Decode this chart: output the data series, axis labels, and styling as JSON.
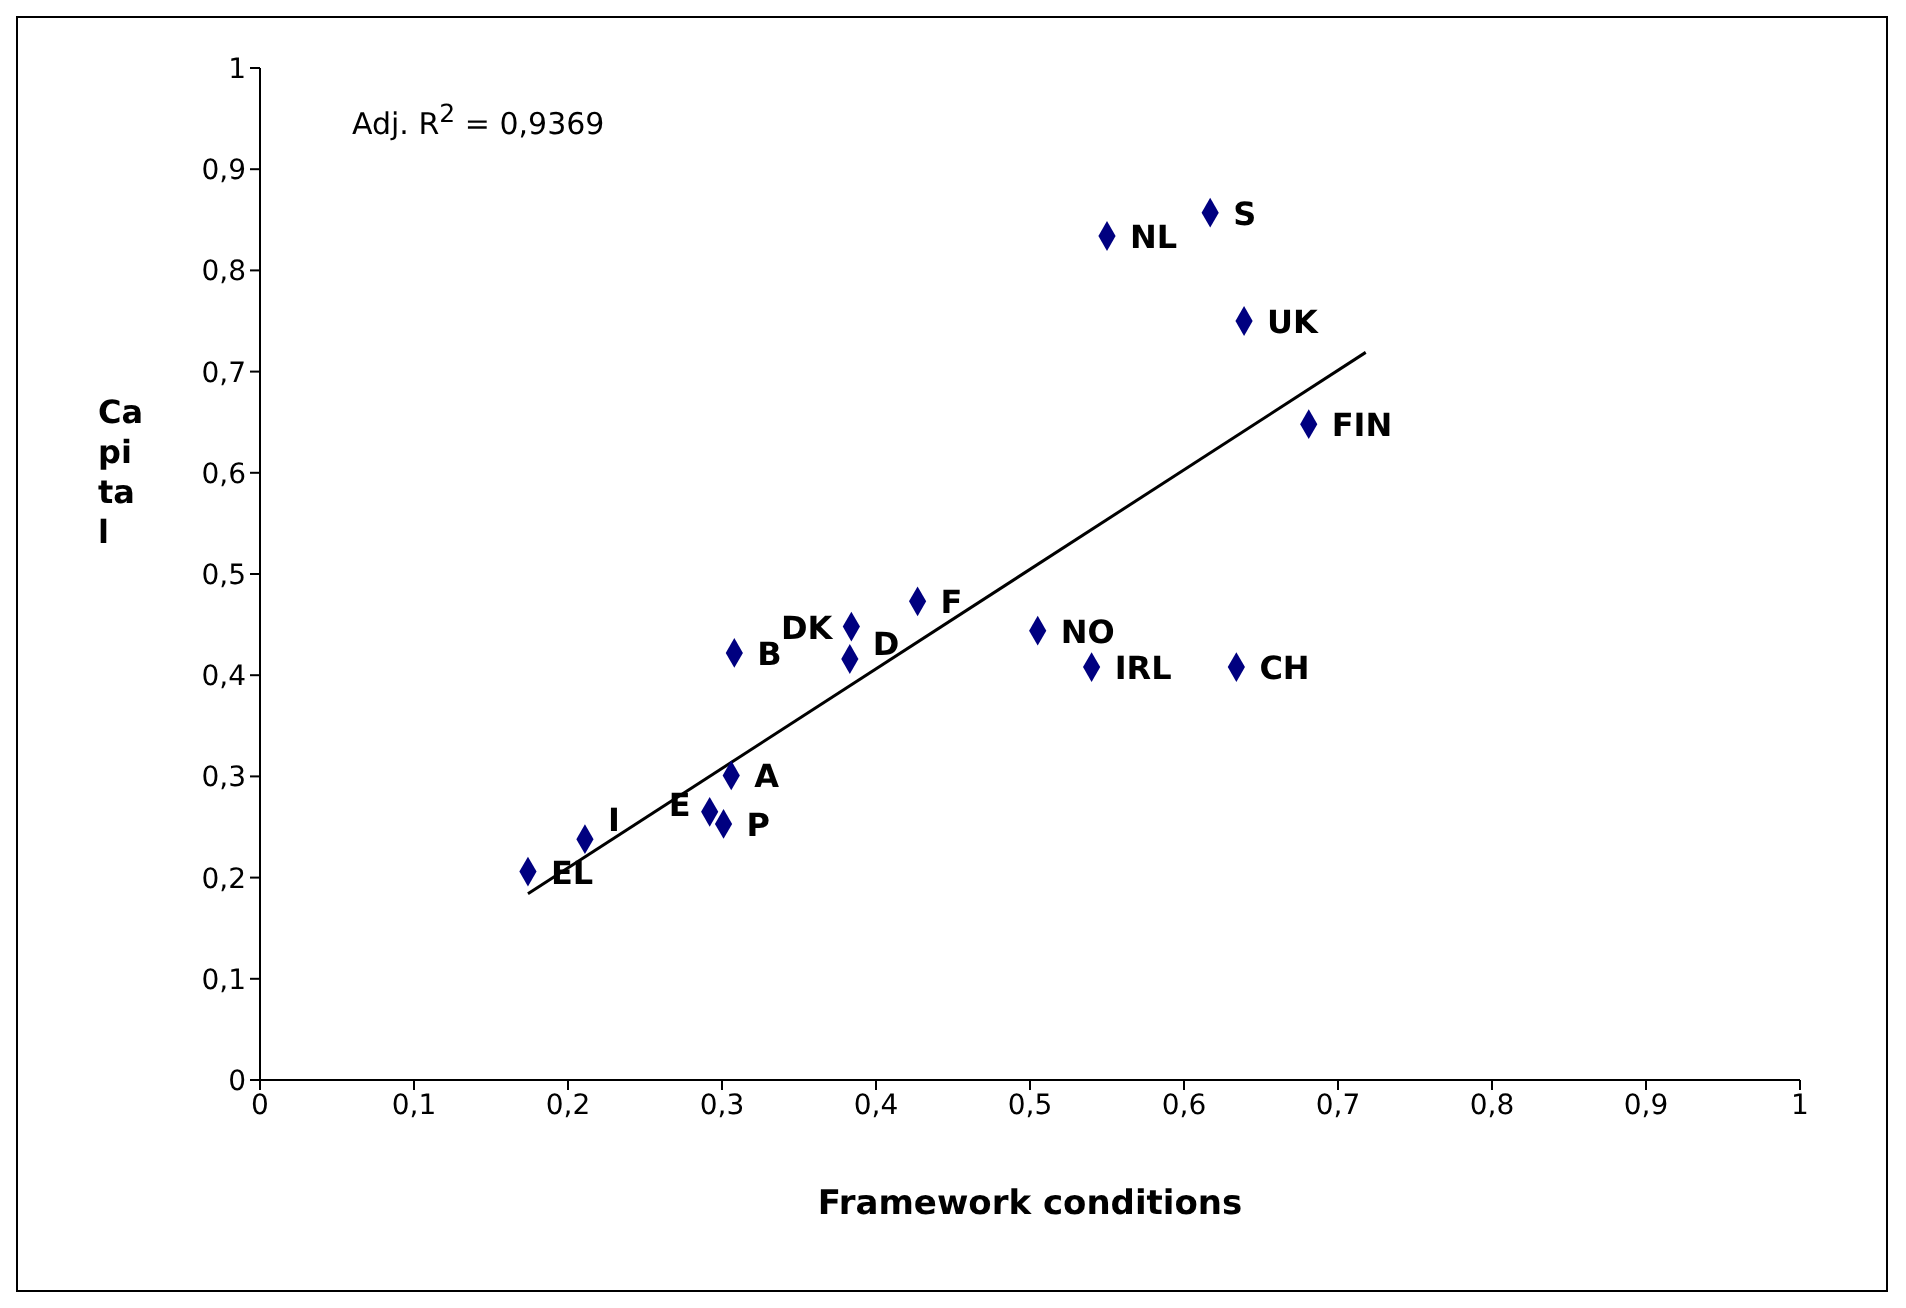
{
  "chart_data": {
    "type": "scatter",
    "xlabel": "Framework conditions",
    "ylabel": "Capital",
    "annotations": [
      "Adj. R$^{2}$ = 0,9369"
    ],
    "xlim": [
      0,
      1
    ],
    "ylim": [
      0,
      1
    ],
    "xticks": [
      0,
      {
        "value": 0.1,
        "label": "0,1"
      },
      {
        "value": 0.2,
        "label": "0,2"
      },
      {
        "value": 0.3,
        "label": "0,3"
      },
      {
        "value": 0.4,
        "label": "0,4"
      },
      {
        "value": 0.5,
        "label": "0,5"
      },
      {
        "value": 0.6,
        "label": "0,6"
      },
      {
        "value": 0.7,
        "label": "0,7"
      },
      {
        "value": 0.8,
        "label": "0,8"
      },
      {
        "value": 0.9,
        "label": "0,9"
      },
      1
    ],
    "yticks": [
      0,
      {
        "value": 0.1,
        "label": "0,1"
      },
      {
        "value": 0.2,
        "label": "0,2"
      },
      {
        "value": 0.3,
        "label": "0,3"
      },
      {
        "value": 0.4,
        "label": "0,4"
      },
      {
        "value": 0.5,
        "label": "0,5"
      },
      {
        "value": 0.6,
        "label": "0,6"
      },
      {
        "value": 0.7,
        "label": "0,7"
      },
      {
        "value": 0.8,
        "label": "0,8"
      },
      {
        "value": 0.9,
        "label": "0,9"
      },
      1
    ],
    "grid": false,
    "legend": false,
    "marker": "diamond",
    "series": [
      {
        "name": "EL",
        "color": "#000080",
        "x": [
          0.174
        ],
        "values": [
          0.206
        ]
      },
      {
        "name": "I",
        "color": "#000080",
        "x": [
          0.211
        ],
        "values": [
          0.238
        ]
      },
      {
        "name": "E",
        "color": "#000080",
        "x": [
          0.292
        ],
        "values": [
          0.265
        ]
      },
      {
        "name": "P",
        "color": "#000080",
        "x": [
          0.301
        ],
        "values": [
          0.253
        ]
      },
      {
        "name": "A",
        "color": "#000080",
        "x": [
          0.306
        ],
        "values": [
          0.301
        ]
      },
      {
        "name": "B",
        "color": "#000080",
        "x": [
          0.308
        ],
        "values": [
          0.422
        ]
      },
      {
        "name": "D",
        "color": "#000080",
        "x": [
          0.383
        ],
        "values": [
          0.416
        ]
      },
      {
        "name": "DK",
        "color": "#000080",
        "x": [
          0.384
        ],
        "values": [
          0.448
        ]
      },
      {
        "name": "F",
        "color": "#000080",
        "x": [
          0.427
        ],
        "values": [
          0.473
        ]
      },
      {
        "name": "NO",
        "color": "#000080",
        "x": [
          0.505
        ],
        "values": [
          0.444
        ]
      },
      {
        "name": "IRL",
        "color": "#000080",
        "x": [
          0.54
        ],
        "values": [
          0.408
        ]
      },
      {
        "name": "CH",
        "color": "#000080",
        "x": [
          0.634
        ],
        "values": [
          0.408
        ]
      },
      {
        "name": "NL",
        "color": "#000080",
        "x": [
          0.55
        ],
        "values": [
          0.834
        ]
      },
      {
        "name": "S",
        "color": "#000080",
        "x": [
          0.617
        ],
        "values": [
          0.857
        ]
      },
      {
        "name": "UK",
        "color": "#000080",
        "x": [
          0.639
        ],
        "values": [
          0.75
        ]
      },
      {
        "name": "FIN",
        "color": "#000080",
        "x": [
          0.681
        ],
        "values": [
          0.648
        ]
      },
      {
        "type": "line",
        "color": "#000000",
        "marker": "none",
        "x": [
          0.174,
          0.718
        ],
        "values": [
          0.184,
          0.719
        ]
      }
    ]
  }
}
